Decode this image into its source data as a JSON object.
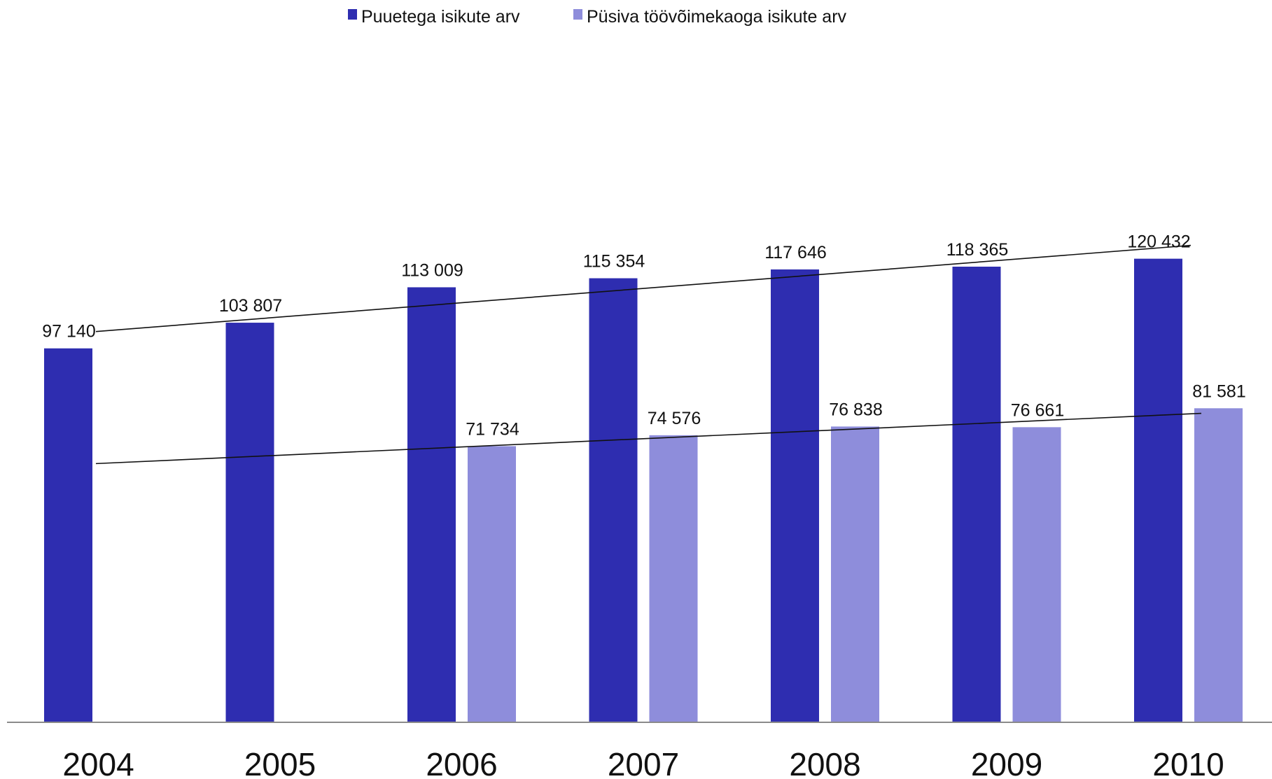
{
  "chart_data": {
    "type": "bar",
    "categories": [
      "2004",
      "2005",
      "2006",
      "2007",
      "2008",
      "2009",
      "2010"
    ],
    "series": [
      {
        "name": "Puuetega isikute arv",
        "color": "#2e2db0",
        "values": [
          97140,
          103807,
          113009,
          115354,
          117646,
          118365,
          120432
        ],
        "labels": [
          "97 140",
          "103 807",
          "113 009",
          "115 354",
          "117 646",
          "118 365",
          "120 432"
        ]
      },
      {
        "name": "Püsiva töövõimekaoga isikute arv",
        "color": "#8e8ddb",
        "values": [
          null,
          null,
          71734,
          74576,
          76838,
          76661,
          81581
        ],
        "labels": [
          "",
          "",
          "71 734",
          "74 576",
          "76 838",
          "76 661",
          "81 581"
        ]
      }
    ],
    "trendlines": true,
    "legend_position": "top",
    "grid": false
  }
}
